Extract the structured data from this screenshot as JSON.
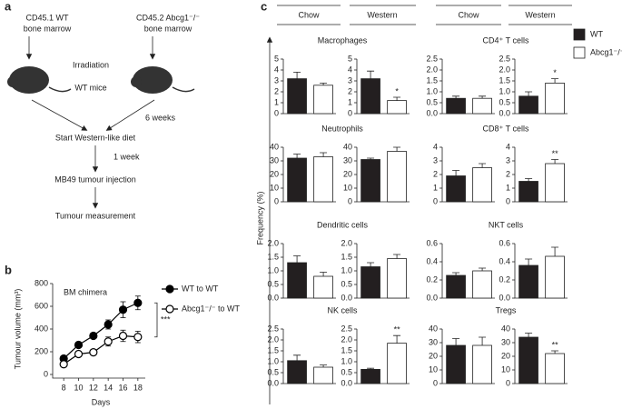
{
  "panel_a": {
    "label": "a",
    "donor_wt": [
      "CD45.1 WT",
      "bone marrow"
    ],
    "donor_ko": [
      "CD45.2 Abcg1⁻/⁻",
      "bone marrow"
    ],
    "irradiation": "Irradiation",
    "recipient": "WT mice",
    "interval_1": "6 weeks",
    "step_1": "Start Western-like diet",
    "interval_2": "1 week",
    "step_2": "MB49 tumour injection",
    "step_3": "Tumour measurement"
  },
  "panel_b_label": "b",
  "panel_c": {
    "label": "c",
    "headers": [
      "Chow",
      "Western",
      "Chow",
      "Western"
    ],
    "y_label": "Frequency (%)",
    "legend": [
      {
        "name": "WT",
        "color": "#231f20"
      },
      {
        "name": "Abcg1⁻/⁻",
        "color": "#ffffff"
      }
    ]
  },
  "chart_data": [
    {
      "type": "line",
      "title": "BM chimera",
      "x_label": "Days",
      "y_label": "Tumour volume (mm³)",
      "x": [
        8,
        10,
        12,
        14,
        16,
        18
      ],
      "xlim": [
        7,
        19
      ],
      "xticks": [
        8,
        10,
        12,
        14,
        16,
        18
      ],
      "ylim": [
        0,
        800
      ],
      "yticks": [
        0,
        200,
        400,
        600,
        800
      ],
      "annotation": "***",
      "series": [
        {
          "name": "WT to WT",
          "color": "#000000",
          "fill": "#000000",
          "values": [
            140,
            260,
            340,
            440,
            570,
            630
          ],
          "errors": [
            20,
            25,
            25,
            40,
            70,
            60
          ]
        },
        {
          "name": "Abcg1⁻/⁻ to WT",
          "color": "#000000",
          "fill": "#ffffff",
          "values": [
            90,
            180,
            195,
            290,
            340,
            330
          ],
          "errors": [
            15,
            20,
            25,
            40,
            50,
            50
          ]
        }
      ]
    },
    {
      "type": "bar-pair",
      "title": "Macrophages",
      "panels": [
        {
          "ylim": [
            0,
            5
          ],
          "yticks": [
            0,
            1,
            2,
            3,
            4,
            5
          ],
          "values": [
            3.2,
            2.6
          ],
          "errors": [
            0.6,
            0.2
          ]
        },
        {
          "ylim": [
            0,
            5
          ],
          "yticks": [
            0,
            1,
            2,
            3,
            4,
            5
          ],
          "values": [
            3.2,
            1.2
          ],
          "errors": [
            0.7,
            0.3
          ],
          "annotation": "*"
        }
      ]
    },
    {
      "type": "bar-pair",
      "title": "CD4⁺ T cells",
      "panels": [
        {
          "ylim": [
            0,
            2.5
          ],
          "yticks": [
            {
              "value": 0,
              "label": "0.0"
            },
            0.5,
            {
              "value": 1,
              "label": "1.0"
            },
            1.5,
            {
              "value": 2,
              "label": "2.0"
            },
            2.5
          ],
          "values": [
            0.7,
            0.7
          ],
          "errors": [
            0.1,
            0.1
          ]
        },
        {
          "ylim": [
            0,
            2.5
          ],
          "yticks": [
            {
              "value": 0,
              "label": "0.0"
            },
            0.5,
            {
              "value": 1,
              "label": "1.0"
            },
            1.5,
            {
              "value": 2,
              "label": "2.0"
            },
            2.5
          ],
          "values": [
            0.8,
            1.4
          ],
          "errors": [
            0.2,
            0.2
          ],
          "annotation": "*"
        }
      ]
    },
    {
      "type": "bar-pair",
      "title": "Neutrophils",
      "panels": [
        {
          "ylim": [
            0,
            40
          ],
          "yticks": [
            0,
            10,
            20,
            30,
            40
          ],
          "values": [
            32,
            33
          ],
          "errors": [
            3,
            3
          ]
        },
        {
          "ylim": [
            0,
            40
          ],
          "yticks": [
            0,
            10,
            20,
            30,
            40
          ],
          "values": [
            31,
            37
          ],
          "errors": [
            1,
            3
          ]
        }
      ]
    },
    {
      "type": "bar-pair",
      "title": "CD8⁺ T cells",
      "panels": [
        {
          "ylim": [
            0,
            4
          ],
          "yticks": [
            0,
            1,
            2,
            3,
            4
          ],
          "values": [
            1.9,
            2.5
          ],
          "errors": [
            0.4,
            0.3
          ]
        },
        {
          "ylim": [
            0,
            4
          ],
          "yticks": [
            0,
            1,
            2,
            3,
            4
          ],
          "values": [
            1.5,
            2.8
          ],
          "errors": [
            0.2,
            0.3
          ],
          "annotation": "**"
        }
      ]
    },
    {
      "type": "bar-pair",
      "title": "Dendritic cells",
      "panels": [
        {
          "ylim": [
            0,
            2
          ],
          "yticks": [
            {
              "value": 0,
              "label": "0.0"
            },
            0.5,
            {
              "value": 1,
              "label": "1.0"
            },
            1.5,
            {
              "value": 2,
              "label": "2.0"
            }
          ],
          "values": [
            1.3,
            0.8
          ],
          "errors": [
            0.25,
            0.15
          ]
        },
        {
          "ylim": [
            0,
            2
          ],
          "yticks": [
            {
              "value": 0,
              "label": "0.0"
            },
            0.5,
            {
              "value": 1,
              "label": "1.0"
            },
            1.5,
            {
              "value": 2,
              "label": "2.0"
            }
          ],
          "values": [
            1.15,
            1.45
          ],
          "errors": [
            0.15,
            0.15
          ]
        }
      ]
    },
    {
      "type": "bar-pair",
      "title": "NKT cells",
      "panels": [
        {
          "ylim": [
            0,
            0.6
          ],
          "yticks": [
            {
              "value": 0,
              "label": "0.0"
            },
            0.2,
            0.4,
            0.6
          ],
          "values": [
            0.25,
            0.3
          ],
          "errors": [
            0.03,
            0.03
          ]
        },
        {
          "ylim": [
            0,
            0.6
          ],
          "yticks": [
            {
              "value": 0,
              "label": "0.0"
            },
            0.2,
            0.4,
            0.6
          ],
          "values": [
            0.36,
            0.46
          ],
          "errors": [
            0.07,
            0.1
          ]
        }
      ]
    },
    {
      "type": "bar-pair",
      "title": "NK cells",
      "panels": [
        {
          "ylim": [
            0,
            2.5
          ],
          "yticks": [
            {
              "value": 0,
              "label": "0.0"
            },
            0.5,
            {
              "value": 1,
              "label": "1.0"
            },
            1.5,
            {
              "value": 2,
              "label": "2.0"
            },
            2.5
          ],
          "values": [
            1.05,
            0.75
          ],
          "errors": [
            0.25,
            0.1
          ]
        },
        {
          "ylim": [
            0,
            2.5
          ],
          "yticks": [
            {
              "value": 0,
              "label": "0.0"
            },
            0.5,
            {
              "value": 1,
              "label": "1.0"
            },
            1.5,
            {
              "value": 2,
              "label": "2.0"
            },
            2.5
          ],
          "values": [
            0.65,
            1.85
          ],
          "errors": [
            0.05,
            0.35
          ],
          "annotation": "**"
        }
      ]
    },
    {
      "type": "bar-pair",
      "title": "Tregs",
      "panels": [
        {
          "ylim": [
            0,
            40
          ],
          "yticks": [
            0,
            10,
            20,
            30,
            40
          ],
          "values": [
            28,
            28
          ],
          "errors": [
            5,
            6
          ]
        },
        {
          "ylim": [
            0,
            40
          ],
          "yticks": [
            0,
            10,
            20,
            30,
            40
          ],
          "values": [
            34,
            22
          ],
          "errors": [
            3,
            2
          ],
          "annotation": "**"
        }
      ]
    }
  ]
}
